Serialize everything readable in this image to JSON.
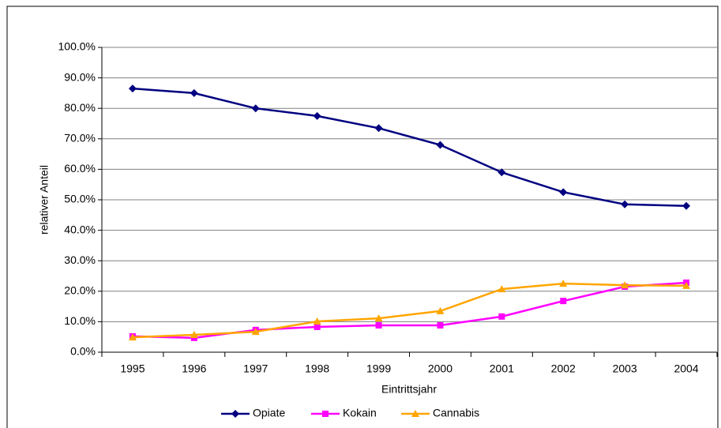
{
  "chart_data": {
    "type": "line",
    "x_label": "Eintrittsjahr",
    "y_label": "relativer Anteil",
    "categories": [
      "1995",
      "1996",
      "1997",
      "1998",
      "1999",
      "2000",
      "2001",
      "2002",
      "2003",
      "2004"
    ],
    "series": [
      {
        "name": "Opiate",
        "color": "#000080",
        "marker": "diamond",
        "values": [
          86.5,
          85.0,
          80.0,
          77.5,
          73.5,
          68.0,
          59.0,
          52.5,
          48.5,
          48.0
        ]
      },
      {
        "name": "Kokain",
        "color": "#ff00ff",
        "marker": "square",
        "values": [
          5.2,
          4.7,
          7.3,
          8.3,
          8.8,
          8.8,
          11.7,
          16.8,
          21.5,
          22.8
        ]
      },
      {
        "name": "Cannabis",
        "color": "#ffa500",
        "marker": "triangle",
        "values": [
          4.9,
          5.7,
          6.7,
          10.1,
          11.1,
          13.5,
          20.7,
          22.5,
          22.0,
          21.8
        ]
      }
    ],
    "ylim": [
      0,
      100
    ],
    "yticks": [
      {
        "value": 0,
        "label": "0.0%"
      },
      {
        "value": 10,
        "label": "10.0%"
      },
      {
        "value": 20,
        "label": "20.0%"
      },
      {
        "value": 30,
        "label": "30.0%"
      },
      {
        "value": 40,
        "label": "40.0%"
      },
      {
        "value": 50,
        "label": "50.0%"
      },
      {
        "value": 60,
        "label": "60.0%"
      },
      {
        "value": 70,
        "label": "70.0%"
      },
      {
        "value": 80,
        "label": "80.0%"
      },
      {
        "value": 90,
        "label": "90.0%"
      },
      {
        "value": 100,
        "label": "100.0%"
      }
    ],
    "grid": true,
    "legend": "bottom"
  }
}
